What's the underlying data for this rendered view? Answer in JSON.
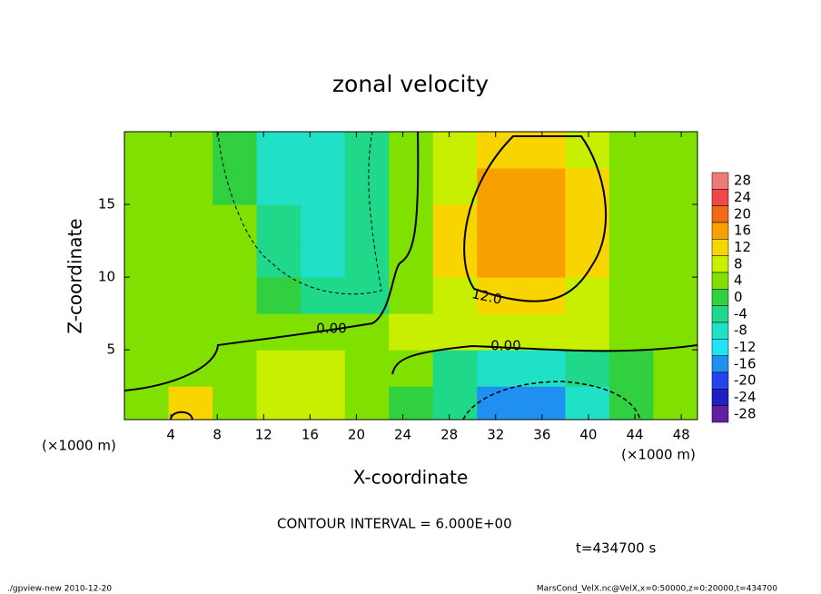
{
  "chart_data": {
    "type": "contour",
    "title": "zonal velocity",
    "xlabel": "X-coordinate",
    "ylabel": "Z-coordinate",
    "x_unit": "(×1000 m)",
    "y_unit": "(×1000 m)",
    "xlim": [
      0,
      49.4
    ],
    "ylim": [
      0.2,
      20
    ],
    "xticks": [
      4,
      8,
      12,
      16,
      20,
      24,
      28,
      32,
      36,
      40,
      44,
      48
    ],
    "yticks": [
      5,
      10,
      15
    ],
    "x": [
      1.9,
      5.7,
      9.5,
      13.3,
      17.1,
      20.9,
      24.7,
      28.5,
      32.3,
      36.1,
      39.9,
      43.7,
      47.5
    ],
    "y": [
      1.25,
      3.75,
      6.25,
      8.75,
      11.25,
      13.75,
      16.25,
      18.75
    ],
    "z": [
      [
        4,
        10,
        2,
        8,
        8,
        2,
        0,
        -6,
        -16,
        -18,
        -10,
        -2,
        2
      ],
      [
        2,
        4,
        4,
        6,
        6,
        2,
        2,
        -4,
        -10,
        -10,
        -6,
        -2,
        2
      ],
      [
        2,
        2,
        4,
        2,
        4,
        4,
        6,
        6,
        8,
        8,
        6,
        4,
        4
      ],
      [
        2,
        2,
        2,
        -2,
        -6,
        -4,
        4,
        8,
        12,
        12,
        8,
        4,
        2
      ],
      [
        2,
        2,
        2,
        -4,
        -8,
        -4,
        2,
        10,
        16,
        16,
        10,
        4,
        2
      ],
      [
        2,
        2,
        2,
        -6,
        -10,
        -4,
        2,
        10,
        16,
        16,
        12,
        4,
        2
      ],
      [
        2,
        2,
        0,
        -8,
        -10,
        -6,
        2,
        8,
        14,
        14,
        10,
        4,
        2
      ],
      [
        2,
        2,
        0,
        -8,
        -10,
        -6,
        2,
        6,
        10,
        10,
        8,
        4,
        2
      ]
    ],
    "colorbar": {
      "ticks": [
        28,
        24,
        20,
        16,
        12,
        8,
        4,
        0,
        -4,
        -8,
        -12,
        -16,
        -20,
        -24,
        -28
      ],
      "colors": [
        "#f07a7a",
        "#f04848",
        "#f06a1c",
        "#f7a000",
        "#f8d400",
        "#c8ee00",
        "#80e000",
        "#30d040",
        "#20d88a",
        "#20e0c8",
        "#20e4f4",
        "#2090f0",
        "#2444f0",
        "#2020c0",
        "#6020a0"
      ],
      "step": 4
    },
    "contour_labels": [
      "0.00",
      "0.00",
      "12.0"
    ],
    "contour_interval": "CONTOUR INTERVAL = 6.000E+00",
    "time": "t=434700 s",
    "footer_left": "./gpview-new  2010-12-20",
    "footer_right": "MarsCond_VelX.nc@VelX,x=0:50000,z=0:20000,t=434700"
  }
}
